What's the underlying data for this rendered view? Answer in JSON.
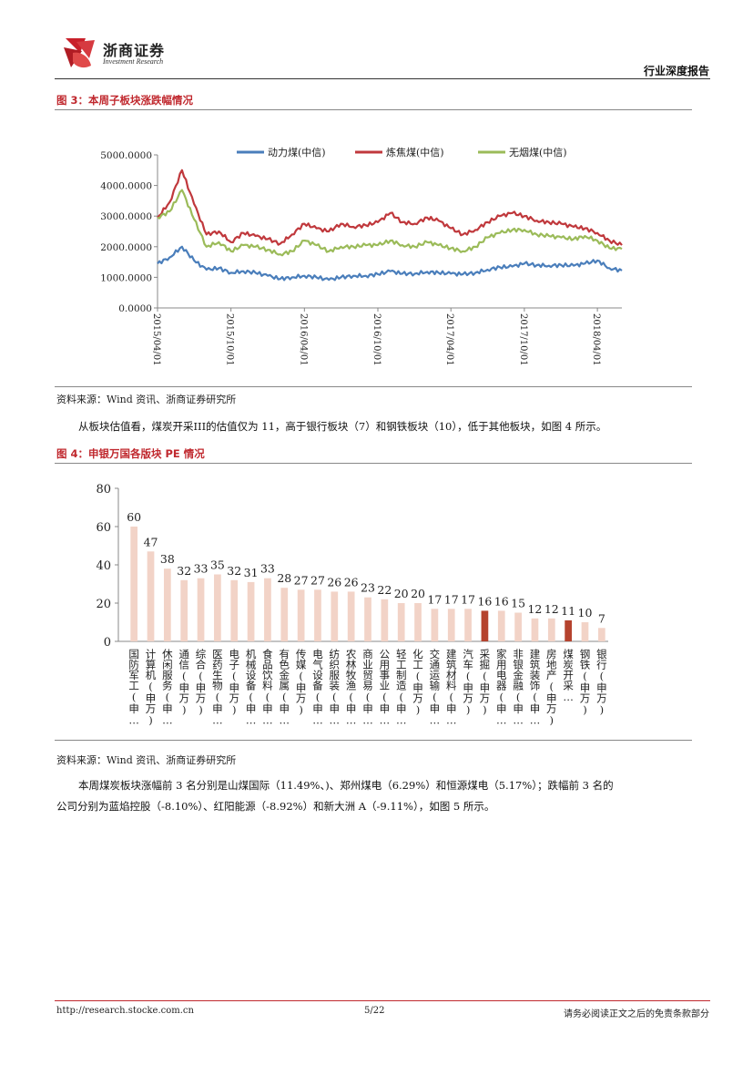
{
  "header": {
    "company_cn": "浙商证券",
    "company_en": "Investment Research",
    "report_type": "行业深度报告"
  },
  "figure3": {
    "title": "图 3：本周子板块涨跌幅情况",
    "source": "资料来源：Wind 资讯、浙商证券研究所"
  },
  "paragraph1": "从板块估值看，煤炭开采III的估值仅为 11，高于银行板块（7）和钢铁板块（10），低于其他板块，如图 4 所示。",
  "figure4": {
    "title": "图 4：申银万国各版块 PE 情况",
    "source": "资料来源：Wind 资讯、浙商证券研究所"
  },
  "paragraph2_line1": "本周煤炭板块涨幅前 3 名分别是山煤国际（11.49%、)、郑州煤电（6.29%）和恒源煤电（5.17%）；跌幅前 3 名的",
  "paragraph2_line2": "公司分别为蓝焰控股（-8.10%）、红阳能源（-8.92%）和新大洲 A（-9.11%），如图 5 所示。",
  "footer": {
    "url": "http://research.stocke.com.cn",
    "page": "5/22",
    "disclaimer": "请务必阅读正文之后的免责条款部分"
  },
  "chart_data": [
    {
      "type": "line",
      "title": "",
      "ylim": [
        0,
        5000
      ],
      "yticks": [
        "0.0000",
        "1000.0000",
        "2000.0000",
        "3000.0000",
        "4000.0000",
        "5000.0000"
      ],
      "xticks": [
        "2015/04/01",
        "2015/10/01",
        "2016/04/01",
        "2016/10/01",
        "2017/04/01",
        "2017/10/01",
        "2018/04/01"
      ],
      "legend_position": "top",
      "x": [
        "2015/04/01",
        "2015/05/01",
        "2015/06/01",
        "2015/07/01",
        "2015/08/01",
        "2015/09/01",
        "2015/10/01",
        "2015/11/01",
        "2015/12/01",
        "2016/01/01",
        "2016/02/01",
        "2016/03/01",
        "2016/04/01",
        "2016/05/01",
        "2016/06/01",
        "2016/07/01",
        "2016/08/01",
        "2016/09/01",
        "2016/10/01",
        "2016/11/01",
        "2016/12/01",
        "2017/01/01",
        "2017/02/01",
        "2017/03/01",
        "2017/04/01",
        "2017/05/01",
        "2017/06/01",
        "2017/07/01",
        "2017/08/01",
        "2017/09/01",
        "2017/10/01",
        "2017/11/01",
        "2017/12/01",
        "2018/01/01",
        "2018/02/01",
        "2018/03/01",
        "2018/04/01",
        "2018/05/01",
        "2018/06/01"
      ],
      "series": [
        {
          "name": "动力煤(中信)",
          "color": "#4a7ebb",
          "values": [
            1450,
            1650,
            2000,
            1550,
            1250,
            1300,
            1150,
            1200,
            1150,
            1050,
            950,
            1000,
            1050,
            1000,
            920,
            1000,
            1050,
            1050,
            1100,
            1200,
            1120,
            1120,
            1180,
            1150,
            1120,
            1100,
            1150,
            1250,
            1330,
            1350,
            1450,
            1400,
            1380,
            1400,
            1380,
            1450,
            1550,
            1300,
            1220
          ]
        },
        {
          "name": "炼焦煤(中信)",
          "color": "#c0383c",
          "values": [
            2950,
            3450,
            4500,
            3400,
            2400,
            2500,
            2150,
            2450,
            2350,
            2250,
            2100,
            2400,
            2750,
            2600,
            2500,
            2750,
            2650,
            2700,
            2800,
            3100,
            2800,
            2750,
            2950,
            2850,
            2600,
            2400,
            2550,
            2800,
            3000,
            3100,
            3000,
            2850,
            2800,
            2750,
            2650,
            2600,
            2450,
            2200,
            2050
          ]
        },
        {
          "name": "无烟煤(中信)",
          "color": "#9bbb59",
          "values": [
            2950,
            3150,
            3850,
            2900,
            2000,
            2150,
            1850,
            2050,
            2000,
            1900,
            1750,
            1850,
            2200,
            2050,
            1850,
            2000,
            2000,
            2050,
            2050,
            2200,
            2050,
            2000,
            2150,
            2050,
            1950,
            1850,
            2000,
            2300,
            2450,
            2550,
            2550,
            2400,
            2350,
            2300,
            2250,
            2350,
            2200,
            1950,
            1930
          ]
        }
      ]
    },
    {
      "type": "bar",
      "title": "",
      "ylim": [
        0,
        80
      ],
      "yticks": [
        "0",
        "20",
        "40",
        "60",
        "80"
      ],
      "categories": [
        "国防军工(申…",
        "计算机(申万)",
        "休闲服务(申…",
        "通信(申万)",
        "综合(申万)",
        "医药生物(申…",
        "电子(申万)",
        "机械设备(申…",
        "食品饮料(申…",
        "有色金属(申…",
        "传媒(申万)",
        "电气设备(申…",
        "纺织服装(申…",
        "农林牧渔(申…",
        "商业贸易(申…",
        "公用事业(申…",
        "轻工制造(申…",
        "化工(申万)",
        "交通运输(申…",
        "建筑材料(申…",
        "汽车(申万)",
        "采掘(申万)",
        "家用电器(申…",
        "非银金融(申…",
        "建筑装饰(申…",
        "房地产(申万)",
        "煤炭开采…",
        "钢铁(申万)",
        "银行(申万)"
      ],
      "values": [
        60,
        47,
        38,
        32,
        33,
        35,
        32,
        31,
        33,
        28,
        27,
        27,
        26,
        26,
        23,
        22,
        20,
        20,
        17,
        17,
        17,
        16,
        16,
        15,
        12,
        12,
        11,
        10,
        7
      ],
      "bar_color": "#f2d3c7",
      "highlight_color": "#b5432e",
      "highlight_indices": [
        21,
        26
      ]
    }
  ]
}
